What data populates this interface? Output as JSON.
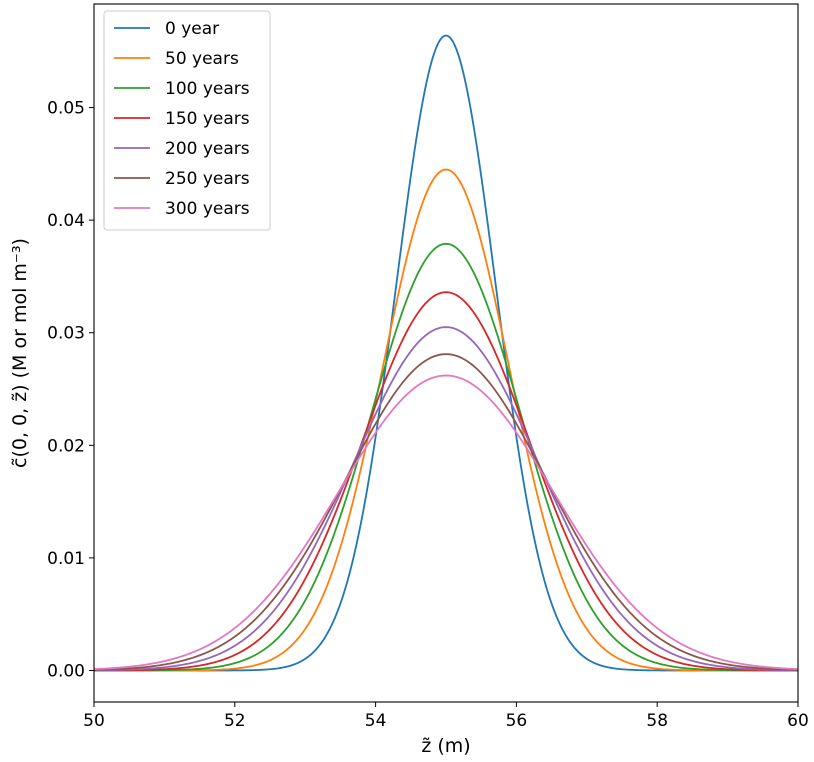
{
  "chart_data": {
    "type": "line",
    "title": "",
    "xlabel": "z̃ (m)",
    "ylabel": "c̃(0, 0, z̃) (M or mol m⁻³)",
    "xlim": [
      50,
      60
    ],
    "ylim": [
      -0.0028,
      0.0592
    ],
    "x_ticks": [
      50,
      52,
      54,
      56,
      58,
      60
    ],
    "y_ticks": [
      0.0,
      0.01,
      0.02,
      0.03,
      0.04,
      0.05
    ],
    "x_tick_labels": [
      "50",
      "52",
      "54",
      "56",
      "58",
      "60"
    ],
    "y_tick_labels": [
      "0.00",
      "0.01",
      "0.02",
      "0.03",
      "0.04",
      "0.05"
    ],
    "grid": false,
    "legend_position": "top-left",
    "center": 55,
    "series": [
      {
        "name": "0 year",
        "color": "#1f77b4",
        "peak": 0.0564,
        "sigma": 0.707
      },
      {
        "name": "50 years",
        "color": "#ff7f0e",
        "peak": 0.0445,
        "sigma": 0.896
      },
      {
        "name": "100 years",
        "color": "#2ca02c",
        "peak": 0.0379,
        "sigma": 1.052
      },
      {
        "name": "150 years",
        "color": "#d62728",
        "peak": 0.0336,
        "sigma": 1.187
      },
      {
        "name": "200 years",
        "color": "#9467bd",
        "peak": 0.0305,
        "sigma": 1.308
      },
      {
        "name": "250 years",
        "color": "#8c564b",
        "peak": 0.0281,
        "sigma": 1.419
      },
      {
        "name": "300 years",
        "color": "#e377c2",
        "peak": 0.0262,
        "sigma": 1.523
      }
    ]
  }
}
